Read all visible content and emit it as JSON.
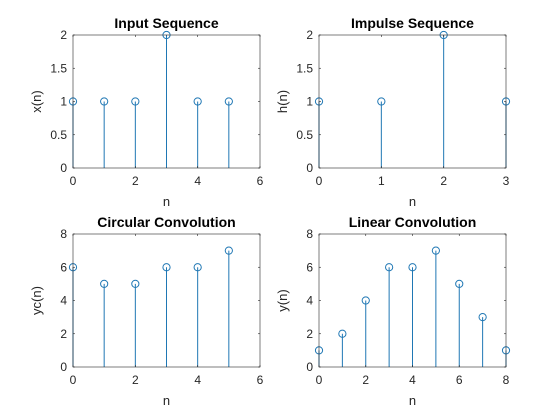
{
  "colors": {
    "stem": "#1f77b4",
    "axes": "#262626",
    "background": "#ffffff"
  },
  "chart_data": [
    {
      "type": "stem",
      "title": "Input Sequence",
      "xlabel": "n",
      "ylabel": "x(n)",
      "xlim": [
        0,
        6
      ],
      "ylim": [
        0,
        2
      ],
      "xticks": [
        0,
        2,
        4,
        6
      ],
      "yticks": [
        0,
        0.5,
        1,
        1.5,
        2
      ],
      "xtick_labels": [
        "0",
        "2",
        "4",
        "6"
      ],
      "ytick_labels": [
        "0",
        "0.5",
        "1",
        "1.5",
        "2"
      ],
      "x": [
        0,
        1,
        2,
        3,
        4,
        5
      ],
      "y": [
        1,
        1,
        1,
        2,
        1,
        1
      ],
      "grid": false
    },
    {
      "type": "stem",
      "title": "Impulse Sequence",
      "xlabel": "n",
      "ylabel": "h(n)",
      "xlim": [
        0,
        3
      ],
      "ylim": [
        0,
        2
      ],
      "xticks": [
        0,
        1,
        2,
        3
      ],
      "yticks": [
        0,
        0.5,
        1,
        1.5,
        2
      ],
      "xtick_labels": [
        "0",
        "1",
        "2",
        "3"
      ],
      "ytick_labels": [
        "0",
        "0.5",
        "1",
        "1.5",
        "2"
      ],
      "x": [
        0,
        1,
        2,
        3
      ],
      "y": [
        1,
        1,
        2,
        1
      ],
      "grid": false
    },
    {
      "type": "stem",
      "title": "Circular Convolution",
      "xlabel": "n",
      "ylabel": "yc(n)",
      "xlim": [
        0,
        6
      ],
      "ylim": [
        0,
        8
      ],
      "xticks": [
        0,
        2,
        4,
        6
      ],
      "yticks": [
        0,
        2,
        4,
        6,
        8
      ],
      "xtick_labels": [
        "0",
        "2",
        "4",
        "6"
      ],
      "ytick_labels": [
        "0",
        "2",
        "4",
        "6",
        "8"
      ],
      "x": [
        0,
        1,
        2,
        3,
        4,
        5
      ],
      "y": [
        6,
        5,
        5,
        6,
        6,
        7
      ],
      "grid": false
    },
    {
      "type": "stem",
      "title": "Linear Convolution",
      "xlabel": "n",
      "ylabel": "y(n)",
      "xlim": [
        0,
        8
      ],
      "ylim": [
        0,
        8
      ],
      "xticks": [
        0,
        2,
        4,
        6,
        8
      ],
      "yticks": [
        0,
        2,
        4,
        6,
        8
      ],
      "xtick_labels": [
        "0",
        "2",
        "4",
        "6",
        "8"
      ],
      "ytick_labels": [
        "0",
        "2",
        "4",
        "6",
        "8"
      ],
      "x": [
        0,
        1,
        2,
        3,
        4,
        5,
        6,
        7,
        8
      ],
      "y": [
        1,
        2,
        4,
        6,
        6,
        7,
        5,
        3,
        1
      ],
      "grid": false
    }
  ]
}
